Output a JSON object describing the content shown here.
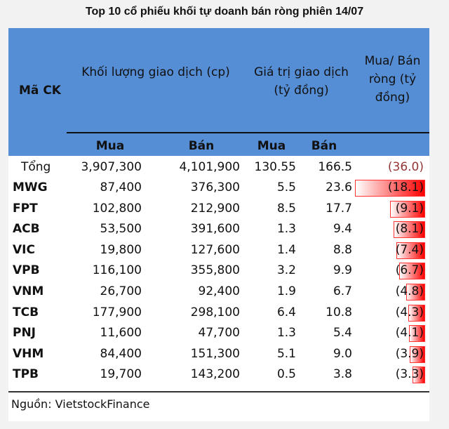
{
  "chart_data": {
    "type": "table",
    "title": "Top 10 cổ phiếu khối tự doanh bán ròng phiên 14/07",
    "headers": {
      "code": "Mã CK",
      "volume": "Khối lượng giao dịch (cp)",
      "value": "Giá trị giao dịch (tỷ đồng)",
      "net": "Mua/ Bán ròng (tỷ đồng)",
      "buy": "Mua",
      "sell": "Bán"
    },
    "total": {
      "label": "Tổng",
      "vol_buy": "3,907,300",
      "vol_sell": "4,101,900",
      "val_buy": "130.55",
      "val_sell": "166.5",
      "net": "(36.0)"
    },
    "rows": [
      {
        "code": "MWG",
        "vol_buy": "87,400",
        "vol_sell": "376,300",
        "val_buy": "5.5",
        "val_sell": "23.6",
        "net": "(18.1)",
        "net_value": -18.1
      },
      {
        "code": "FPT",
        "vol_buy": "102,800",
        "vol_sell": "212,900",
        "val_buy": "8.5",
        "val_sell": "17.7",
        "net": "(9.1)",
        "net_value": -9.1
      },
      {
        "code": "ACB",
        "vol_buy": "53,500",
        "vol_sell": "391,600",
        "val_buy": "1.3",
        "val_sell": "9.4",
        "net": "(8.1)",
        "net_value": -8.1
      },
      {
        "code": "VIC",
        "vol_buy": "19,800",
        "vol_sell": "127,600",
        "val_buy": "1.4",
        "val_sell": "8.8",
        "net": "(7.4)",
        "net_value": -7.4
      },
      {
        "code": "VPB",
        "vol_buy": "116,100",
        "vol_sell": "355,800",
        "val_buy": "3.2",
        "val_sell": "9.9",
        "net": "(6.7)",
        "net_value": -6.7
      },
      {
        "code": "VNM",
        "vol_buy": "26,700",
        "vol_sell": "92,400",
        "val_buy": "1.9",
        "val_sell": "6.7",
        "net": "(4.8)",
        "net_value": -4.8
      },
      {
        "code": "TCB",
        "vol_buy": "177,900",
        "vol_sell": "298,100",
        "val_buy": "6.4",
        "val_sell": "10.8",
        "net": "(4.3)",
        "net_value": -4.3
      },
      {
        "code": "PNJ",
        "vol_buy": "11,600",
        "vol_sell": "47,700",
        "val_buy": "1.3",
        "val_sell": "5.4",
        "net": "(4.1)",
        "net_value": -4.1
      },
      {
        "code": "VHM",
        "vol_buy": "84,400",
        "vol_sell": "151,300",
        "val_buy": "5.1",
        "val_sell": "9.0",
        "net": "(3.9)",
        "net_value": -3.9
      },
      {
        "code": "TPB",
        "vol_buy": "19,700",
        "vol_sell": "143,200",
        "val_buy": "0.5",
        "val_sell": "3.8",
        "net": "(3.3)",
        "net_value": -3.3
      }
    ],
    "source": "Nguồn: VietstockFinance",
    "colors": {
      "header": "#558ed5",
      "bar": "#ff0000",
      "total_net": "#953735"
    }
  }
}
